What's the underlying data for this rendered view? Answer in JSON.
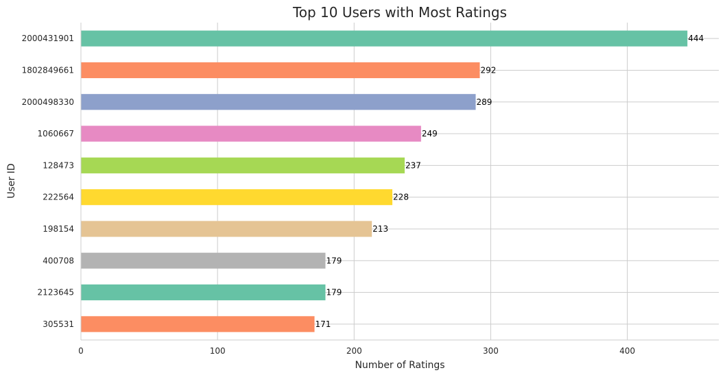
{
  "chart_data": {
    "type": "bar",
    "orientation": "horizontal",
    "title": "Top 10 Users with Most Ratings",
    "xlabel": "Number of Ratings",
    "ylabel": "User ID",
    "categories": [
      "2000431901",
      "1802849661",
      "2000498330",
      "1060667",
      "128473",
      "222564",
      "198154",
      "400708",
      "2123645",
      "305531"
    ],
    "values": [
      444,
      292,
      289,
      249,
      237,
      228,
      213,
      179,
      179,
      171
    ],
    "data_labels": [
      "444",
      "292",
      "289",
      "249",
      "237",
      "228",
      "213",
      "179",
      "179",
      "171"
    ],
    "colors": [
      "#66c2a5",
      "#fc8d62",
      "#8da0cb",
      "#e78ac3",
      "#a6d854",
      "#ffd92f",
      "#e5c494",
      "#b3b3b3",
      "#66c2a5",
      "#fc8d62"
    ],
    "xlim": [
      0,
      467
    ],
    "xticks": [
      0,
      100,
      200,
      300,
      400
    ],
    "xtick_labels": [
      "0",
      "100",
      "200",
      "300",
      "400"
    ],
    "grid": true,
    "legend": "none"
  }
}
